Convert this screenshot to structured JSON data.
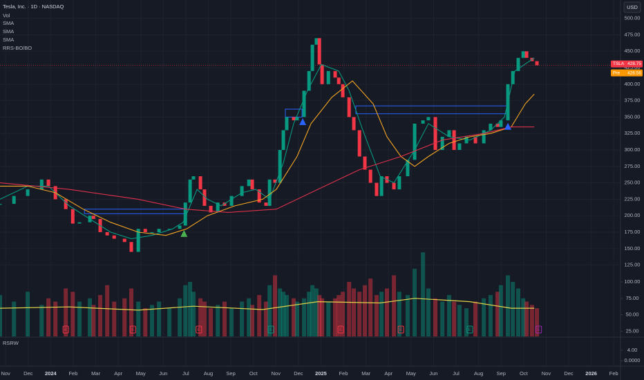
{
  "chart_data": {
    "type": "line",
    "title": "Tesla, Inc. · 1D · NASDAQ",
    "currency": "USD",
    "grid": true,
    "up_color": "#089981",
    "down_color": "#f23645",
    "xlim": [
      -0.25,
      27.3
    ],
    "xticks": [
      {
        "value": 0,
        "label": "Nov"
      },
      {
        "value": 1,
        "label": "Dec"
      },
      {
        "value": 2,
        "label": "2024"
      },
      {
        "value": 3,
        "label": "Feb"
      },
      {
        "value": 4,
        "label": "Mar"
      },
      {
        "value": 5,
        "label": "Apr"
      },
      {
        "value": 6,
        "label": "May"
      },
      {
        "value": 7,
        "label": "Jun"
      },
      {
        "value": 8,
        "label": "Jul"
      },
      {
        "value": 9,
        "label": "Aug"
      },
      {
        "value": 10,
        "label": "Sep"
      },
      {
        "value": 11,
        "label": "Oct"
      },
      {
        "value": 12,
        "label": "Nov"
      },
      {
        "value": 13,
        "label": "Dec"
      },
      {
        "value": 14,
        "label": "2025"
      },
      {
        "value": 15,
        "label": "Feb"
      },
      {
        "value": 16,
        "label": "Mar"
      },
      {
        "value": 17,
        "label": "Apr"
      },
      {
        "value": 18,
        "label": "May"
      },
      {
        "value": 19,
        "label": "Jun"
      },
      {
        "value": 20,
        "label": "Jul"
      },
      {
        "value": 21,
        "label": "Aug"
      },
      {
        "value": 22,
        "label": "Sep"
      },
      {
        "value": 23,
        "label": "Oct"
      },
      {
        "value": 24,
        "label": "Nov"
      },
      {
        "value": 25,
        "label": "Dec"
      },
      {
        "value": 26,
        "label": "2026"
      },
      {
        "value": 27,
        "label": "Feb"
      }
    ],
    "ylim": [
      113,
      528
    ],
    "yticks": [
      {
        "value": 500,
        "label": "500.00"
      },
      {
        "value": 475,
        "label": "475.00"
      },
      {
        "value": 450,
        "label": "450.00"
      },
      {
        "value": 425,
        "label": "425.00"
      },
      {
        "value": 400,
        "label": "400.00"
      },
      {
        "value": 375,
        "label": "375.00"
      },
      {
        "value": 350,
        "label": "350.00"
      },
      {
        "value": 325,
        "label": "325.00"
      },
      {
        "value": 300,
        "label": "300.00"
      },
      {
        "value": 275,
        "label": "275.00"
      },
      {
        "value": 250,
        "label": "250.00"
      },
      {
        "value": 225,
        "label": "225.00"
      },
      {
        "value": 200,
        "label": "200.00"
      },
      {
        "value": 175,
        "label": "175.00"
      },
      {
        "value": 150,
        "label": "150.00"
      },
      {
        "value": 125,
        "label": "125.00"
      }
    ],
    "x": [
      -0.25,
      0.37,
      0.98,
      1.6,
      1.9,
      2.21,
      2.67,
      2.98,
      3.28,
      3.74,
      3.9,
      4.2,
      4.51,
      4.82,
      5.28,
      5.58,
      5.89,
      6.2,
      6.5,
      6.81,
      7.27,
      7.73,
      7.98,
      8.19,
      8.34,
      8.65,
      8.83,
      9.11,
      9.42,
      9.72,
      10.03,
      10.49,
      10.8,
      10.95,
      11.26,
      11.56,
      11.72,
      11.96,
      12.18,
      12.33,
      12.48,
      12.79,
      12.94,
      13.25,
      13.47,
      13.62,
      13.8,
      13.93,
      14.05,
      14.33,
      14.63,
      14.79,
      14.97,
      15.25,
      15.46,
      15.71,
      15.95,
      16.2,
      16.47,
      16.69,
      16.93,
      17.24,
      17.48,
      17.85,
      18.16,
      18.53,
      18.77,
      19.08,
      19.39,
      19.69,
      19.91,
      20.15,
      20.46,
      20.86,
      21.23,
      21.53,
      21.84,
      21.99,
      22.3,
      22.52,
      22.76,
      22.98,
      23.13,
      23.37,
      23.59
    ],
    "values": [
      218,
      230,
      240,
      255,
      245,
      225,
      210,
      188,
      190,
      200,
      195,
      175,
      170,
      165,
      160,
      145,
      180,
      175,
      175,
      180,
      180,
      185,
      220,
      255,
      260,
      240,
      215,
      205,
      220,
      215,
      230,
      245,
      255,
      240,
      220,
      215,
      255,
      250,
      300,
      330,
      350,
      345,
      350,
      390,
      420,
      460,
      470,
      430,
      400,
      420,
      410,
      400,
      380,
      350,
      330,
      290,
      270,
      250,
      230,
      260,
      250,
      240,
      260,
      285,
      340,
      345,
      350,
      300,
      320,
      330,
      300,
      310,
      320,
      310,
      330,
      340,
      335,
      345,
      400,
      420,
      440,
      450,
      440,
      435,
      428.75
    ],
    "last_price": {
      "label": "TSLA",
      "value": 428.75,
      "color": "#f23645"
    },
    "premarket": {
      "label": "Pre",
      "value": 426.56,
      "color": "#ff9800"
    },
    "series": [
      {
        "name": "SMA",
        "color": "#089981",
        "x": [
          -0.25,
          0.98,
          1.9,
          2.82,
          3.74,
          4.66,
          5.58,
          6.5,
          7.42,
          7.88,
          8.5,
          8.96,
          9.57,
          10.49,
          11.1,
          11.72,
          12.33,
          12.79,
          13.4,
          14.02,
          14.79,
          15.25,
          15.86,
          16.63,
          17.24,
          18.16,
          18.77,
          19.69,
          20.61,
          21.53,
          22.15,
          22.61,
          23.47
        ],
        "values": [
          225,
          245,
          245,
          215,
          195,
          175,
          165,
          170,
          180,
          190,
          240,
          225,
          215,
          235,
          240,
          225,
          280,
          340,
          390,
          430,
          420,
          390,
          330,
          260,
          250,
          300,
          340,
          320,
          315,
          330,
          350,
          420,
          440
        ]
      },
      {
        "name": "SMA",
        "color": "#f5a623",
        "x": [
          -0.25,
          0.98,
          2.21,
          3.44,
          4.66,
          5.89,
          7.12,
          8.04,
          8.96,
          10.18,
          11.41,
          12.02,
          12.94,
          13.56,
          14.48,
          15.4,
          16.32,
          16.93,
          17.55,
          18.16,
          18.77,
          19.69,
          20.61,
          21.53,
          22.45,
          23.07,
          23.47
        ],
        "values": [
          245,
          245,
          235,
          210,
          190,
          175,
          170,
          180,
          200,
          215,
          225,
          240,
          290,
          340,
          380,
          405,
          370,
          320,
          290,
          275,
          290,
          310,
          320,
          325,
          335,
          370,
          385
        ]
      },
      {
        "name": "SMA",
        "color": "#e0314b",
        "x": [
          -0.25,
          2.82,
          5.89,
          7.98,
          9.88,
          12.02,
          13.86,
          15.71,
          17.55,
          19.39,
          21.23,
          22.45,
          23.47
        ],
        "values": [
          250,
          240,
          225,
          210,
          205,
          210,
          240,
          270,
          290,
          315,
          325,
          335,
          335
        ]
      }
    ],
    "volume": {
      "name": "Vol",
      "ylim": [
        17,
        110.5
      ],
      "yticks": [
        {
          "value": 100,
          "label": "100.00"
        },
        {
          "value": 75,
          "label": "75.00"
        },
        {
          "value": 50,
          "label": "50.00"
        },
        {
          "value": 25,
          "label": "25.00"
        }
      ],
      "values": [
        80,
        70,
        85,
        65,
        75,
        70,
        90,
        85,
        70,
        75,
        65,
        80,
        95,
        70,
        75,
        90,
        70,
        60,
        65,
        70,
        60,
        75,
        95,
        100,
        85,
        75,
        70,
        60,
        65,
        70,
        60,
        70,
        75,
        65,
        80,
        70,
        95,
        110,
        90,
        85,
        80,
        75,
        70,
        75,
        85,
        95,
        90,
        80,
        75,
        70,
        75,
        80,
        85,
        100,
        90,
        85,
        95,
        105,
        80,
        85,
        90,
        110,
        85,
        80,
        120,
        145,
        90,
        75,
        70,
        80,
        70,
        65,
        60,
        70,
        75,
        80,
        85,
        95,
        110,
        100,
        90,
        75,
        70,
        65,
        60
      ],
      "sma": {
        "color": "#e2d34a",
        "x": [
          -0.25,
          2.82,
          5.89,
          8.34,
          11.41,
          13.86,
          16.63,
          18.16,
          20.61,
          22.45,
          23.47
        ],
        "values": [
          60,
          62,
          57,
          63,
          58,
          70,
          68,
          75,
          70,
          60,
          60
        ]
      }
    },
    "breakout": {
      "name": "RRS-BO/BO",
      "color": "#2962ff",
      "zones": [
        {
          "x": [
            3.5,
            7.98
          ],
          "range": [
            203,
            210
          ]
        },
        {
          "x": [
            12.42,
            13.16
          ],
          "range": [
            350,
            362
          ]
        },
        {
          "x": [
            15.55,
            22.3
          ],
          "range": [
            355,
            367
          ]
        }
      ],
      "signals": [
        {
          "x": 7.92,
          "value": 172,
          "color": "#4caf50"
        },
        {
          "x": 13.19,
          "value": 342,
          "color": "#2962ff"
        },
        {
          "x": 22.3,
          "value": 335,
          "color": "#2962ff"
        }
      ]
    },
    "events": {
      "label": "E",
      "items": [
        {
          "x": 2.67,
          "color": "#f23645"
        },
        {
          "x": 5.65,
          "color": "#f23645"
        },
        {
          "x": 8.58,
          "color": "#f23645"
        },
        {
          "x": 11.78,
          "color": "#089981"
        },
        {
          "x": 14.88,
          "color": "#f23645"
        },
        {
          "x": 17.55,
          "color": "#f23645"
        },
        {
          "x": 20.61,
          "color": "#089981"
        },
        {
          "x": 23.67,
          "color": "#9c27b0"
        }
      ]
    },
    "rsrw": {
      "name": "RSRW",
      "ylim": [
        -2.1,
        8.5
      ],
      "yticks": [
        {
          "value": 4,
          "label": "4.00"
        },
        {
          "value": 0,
          "label": "0.0000"
        }
      ]
    }
  }
}
